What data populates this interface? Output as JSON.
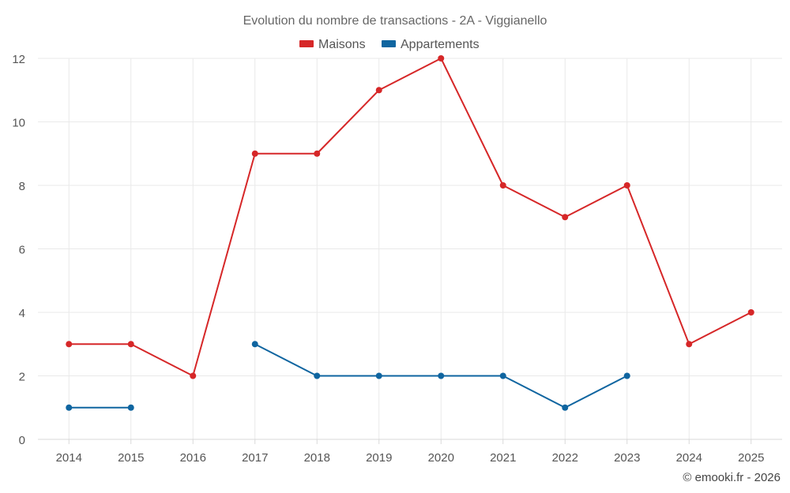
{
  "chart_data": {
    "type": "line",
    "title": "Evolution du nombre de transactions - 2A - Viggianello",
    "xlabel": "",
    "ylabel": "",
    "ylim": [
      0,
      12
    ],
    "yticks": [
      0,
      2,
      4,
      6,
      8,
      10,
      12
    ],
    "categories": [
      "2014",
      "2015",
      "2016",
      "2017",
      "2018",
      "2019",
      "2020",
      "2021",
      "2022",
      "2023",
      "2024",
      "2025"
    ],
    "grid": true,
    "legend_position": "top-center",
    "series": [
      {
        "name": "Maisons",
        "color": "#d62728",
        "values": [
          3,
          3,
          2,
          9,
          9,
          11,
          12,
          8,
          7,
          8,
          3,
          4
        ]
      },
      {
        "name": "Appartements",
        "color": "#0f65a0",
        "values": [
          1,
          1,
          null,
          3,
          2,
          2,
          2,
          2,
          1,
          2,
          null,
          null
        ]
      }
    ]
  },
  "footer": {
    "credit": "© emooki.fr - 2026"
  }
}
